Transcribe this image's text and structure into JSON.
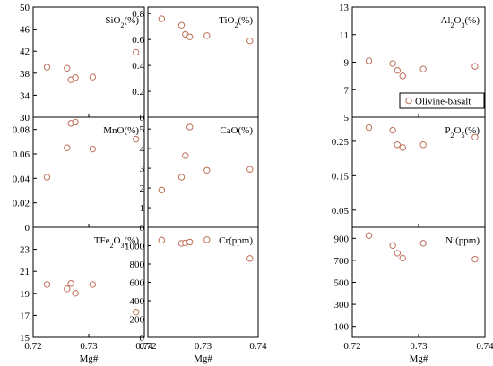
{
  "figure": {
    "marker_color": "#c0705a",
    "legend_label": "Olivine-basalt",
    "x_axis_label": "Mg#"
  },
  "chart_data": [
    {
      "type": "scatter",
      "label": "SiO2(%)",
      "x": [
        0.7225,
        0.7261,
        0.7268,
        0.7276,
        0.7307,
        0.7385
      ],
      "y": [
        39.1,
        38.9,
        36.8,
        37.2,
        37.3,
        41.8
      ],
      "xlim": [
        0.72,
        0.74
      ],
      "ylim": [
        30,
        50
      ],
      "yticks": [
        30,
        34,
        38,
        42,
        46,
        50
      ],
      "xticks": [
        0.72,
        0.73,
        0.74
      ]
    },
    {
      "type": "scatter",
      "label": "TiO2(%)",
      "x": [
        0.7225,
        0.7261,
        0.7268,
        0.7276,
        0.7307,
        0.7385
      ],
      "y": [
        0.76,
        0.71,
        0.64,
        0.62,
        0.63,
        0.59
      ],
      "xlim": [
        0.72,
        0.74
      ],
      "ylim": [
        0,
        0.85
      ],
      "yticks": [
        0,
        0.2,
        0.4,
        0.6,
        0.8
      ],
      "xticks": [
        0.72,
        0.73,
        0.74
      ]
    },
    {
      "type": "scatter",
      "label": "Al2O3(%)",
      "x": [
        0.7225,
        0.7261,
        0.7268,
        0.7276,
        0.7307,
        0.7385
      ],
      "y": [
        9.1,
        8.9,
        8.4,
        8.0,
        8.5,
        8.7
      ],
      "xlim": [
        0.72,
        0.74
      ],
      "ylim": [
        5,
        13
      ],
      "yticks": [
        5,
        7,
        9,
        11,
        13
      ],
      "xticks": [
        0.72,
        0.73,
        0.74
      ]
    },
    {
      "type": "scatter",
      "label": "MnO(%)",
      "x": [
        0.7225,
        0.7261,
        0.7268,
        0.7276,
        0.7307,
        0.7385
      ],
      "y": [
        0.041,
        0.065,
        0.085,
        0.086,
        0.064,
        0.072
      ],
      "xlim": [
        0.72,
        0.74
      ],
      "ylim": [
        0,
        0.09
      ],
      "yticks": [
        0,
        0.02,
        0.04,
        0.06,
        0.08
      ],
      "xticks": [
        0.72,
        0.73,
        0.74
      ]
    },
    {
      "type": "scatter",
      "label": "CaO(%)",
      "x": [
        0.7225,
        0.7261,
        0.7268,
        0.7276,
        0.7307,
        0.7385
      ],
      "y": [
        1.9,
        2.55,
        3.65,
        5.1,
        2.9,
        2.95
      ],
      "xlim": [
        0.72,
        0.74
      ],
      "ylim": [
        0,
        5.6
      ],
      "yticks": [
        0,
        1,
        2,
        3,
        4,
        5
      ],
      "xticks": [
        0.72,
        0.73,
        0.74
      ]
    },
    {
      "type": "scatter",
      "label": "P2O5(%)",
      "x": [
        0.7225,
        0.7261,
        0.7268,
        0.7276,
        0.7307,
        0.7385
      ],
      "y": [
        0.29,
        0.282,
        0.24,
        0.232,
        0.24,
        0.262
      ],
      "xlim": [
        0.72,
        0.74
      ],
      "ylim": [
        0,
        0.32
      ],
      "yticks": [
        0.05,
        0.15,
        0.25
      ],
      "xticks": [
        0.72,
        0.73,
        0.74
      ]
    },
    {
      "type": "scatter",
      "label": "TFe2O3(%)",
      "x": [
        0.7225,
        0.7261,
        0.7268,
        0.7276,
        0.7307,
        0.7385
      ],
      "y": [
        19.8,
        19.4,
        19.9,
        19.0,
        19.8,
        17.3
      ],
      "xlim": [
        0.72,
        0.74
      ],
      "ylim": [
        15,
        25
      ],
      "yticks": [
        15,
        17,
        19,
        21,
        23
      ],
      "xticks": [
        0.72,
        0.73,
        0.74
      ]
    },
    {
      "type": "scatter",
      "label": "Cr(ppm)",
      "x": [
        0.7225,
        0.7261,
        0.7268,
        0.7276,
        0.7307,
        0.7385
      ],
      "y": [
        1060,
        1025,
        1030,
        1040,
        1065,
        860
      ],
      "xlim": [
        0.72,
        0.74
      ],
      "ylim": [
        0,
        1200
      ],
      "yticks": [
        0,
        200,
        400,
        600,
        800,
        1000
      ],
      "xticks": [
        0.72,
        0.73,
        0.74
      ]
    },
    {
      "type": "scatter",
      "label": "Ni(ppm)",
      "x": [
        0.7225,
        0.7261,
        0.7268,
        0.7276,
        0.7307,
        0.7385
      ],
      "y": [
        925,
        835,
        765,
        720,
        855,
        710
      ],
      "xlim": [
        0.72,
        0.74
      ],
      "ylim": [
        0,
        1000
      ],
      "yticks": [
        100,
        300,
        500,
        700,
        900
      ],
      "xticks": [
        0.72,
        0.73,
        0.74
      ]
    }
  ]
}
